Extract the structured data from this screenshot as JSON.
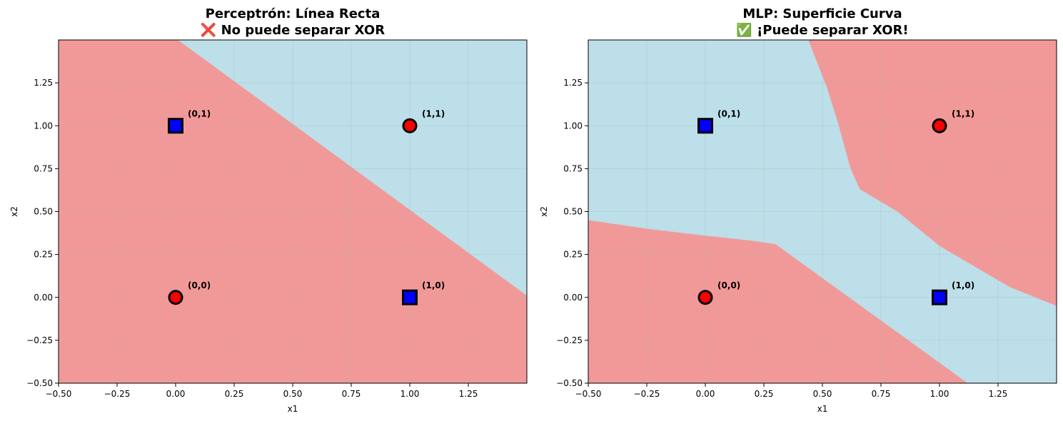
{
  "colors": {
    "class0_region": "#f19999",
    "class1_region": "#bcdfe9",
    "class0_point": "#ff0000",
    "class1_point": "#0000ff",
    "grid": "#b0b0b0"
  },
  "chart_data": [
    {
      "type": "scatter",
      "title_lines": [
        "Perceptrón: Línea Recta",
        "❌ No puede separar XOR"
      ],
      "xlabel": "x1",
      "ylabel": "x2",
      "xlim": [
        -0.5,
        1.5
      ],
      "ylim": [
        -0.5,
        1.5
      ],
      "xticks": [
        -0.5,
        -0.25,
        0.0,
        0.25,
        0.5,
        0.75,
        1.0,
        1.25
      ],
      "yticks": [
        -0.5,
        -0.25,
        0.0,
        0.25,
        0.5,
        0.75,
        1.0,
        1.25
      ],
      "xtick_labels": [
        "−0.50",
        "−0.25",
        "0.00",
        "0.25",
        "0.50",
        "0.75",
        "1.00",
        "1.25"
      ],
      "ytick_labels": [
        "−0.50",
        "−0.25",
        "0.00",
        "0.25",
        "0.50",
        "0.75",
        "1.00",
        "1.25"
      ],
      "grid": true,
      "background_class": 0,
      "class1_regions": [
        [
          [
            0.01,
            1.5
          ],
          [
            1.5,
            1.5
          ],
          [
            1.5,
            0.01
          ]
        ]
      ],
      "points": [
        {
          "x": 0,
          "y": 0,
          "class": 0,
          "marker": "circle",
          "label": "(0,0)"
        },
        {
          "x": 0,
          "y": 1,
          "class": 1,
          "marker": "square",
          "label": "(0,1)"
        },
        {
          "x": 1,
          "y": 0,
          "class": 1,
          "marker": "square",
          "label": "(1,0)"
        },
        {
          "x": 1,
          "y": 1,
          "class": 0,
          "marker": "circle",
          "label": "(1,1)"
        }
      ]
    },
    {
      "type": "scatter",
      "title_lines": [
        "MLP: Superficie Curva",
        "✅ ¡Puede separar XOR!"
      ],
      "xlabel": "x1",
      "ylabel": "x2",
      "xlim": [
        -0.5,
        1.5
      ],
      "ylim": [
        -0.5,
        1.5
      ],
      "xticks": [
        -0.5,
        -0.25,
        0.0,
        0.25,
        0.5,
        0.75,
        1.0,
        1.25
      ],
      "yticks": [
        -0.5,
        -0.25,
        0.0,
        0.25,
        0.5,
        0.75,
        1.0,
        1.25
      ],
      "xtick_labels": [
        "−0.50",
        "−0.25",
        "0.00",
        "0.25",
        "0.50",
        "0.75",
        "1.00",
        "1.25"
      ],
      "ytick_labels": [
        "−0.50",
        "−0.25",
        "0.00",
        "0.25",
        "0.50",
        "0.75",
        "1.00",
        "1.25"
      ],
      "grid": true,
      "background_class": 1,
      "class0_regions": [
        [
          [
            -0.5,
            0.45
          ],
          [
            -0.25,
            0.4
          ],
          [
            0.0,
            0.36
          ],
          [
            0.2,
            0.33
          ],
          [
            0.3,
            0.31
          ],
          [
            1.12,
            -0.5
          ],
          [
            -0.5,
            -0.5
          ]
        ],
        [
          [
            0.44,
            1.5
          ],
          [
            1.5,
            1.5
          ],
          [
            1.5,
            -0.05
          ],
          [
            1.3,
            0.06
          ],
          [
            1.0,
            0.3
          ],
          [
            0.82,
            0.5
          ],
          [
            0.66,
            0.63
          ],
          [
            0.62,
            0.75
          ],
          [
            0.57,
            1.0
          ],
          [
            0.52,
            1.22
          ]
        ]
      ],
      "points": [
        {
          "x": 0,
          "y": 0,
          "class": 0,
          "marker": "circle",
          "label": "(0,0)"
        },
        {
          "x": 0,
          "y": 1,
          "class": 1,
          "marker": "square",
          "label": "(0,1)"
        },
        {
          "x": 1,
          "y": 0,
          "class": 1,
          "marker": "square",
          "label": "(1,0)"
        },
        {
          "x": 1,
          "y": 1,
          "class": 0,
          "marker": "circle",
          "label": "(1,1)"
        }
      ]
    }
  ]
}
